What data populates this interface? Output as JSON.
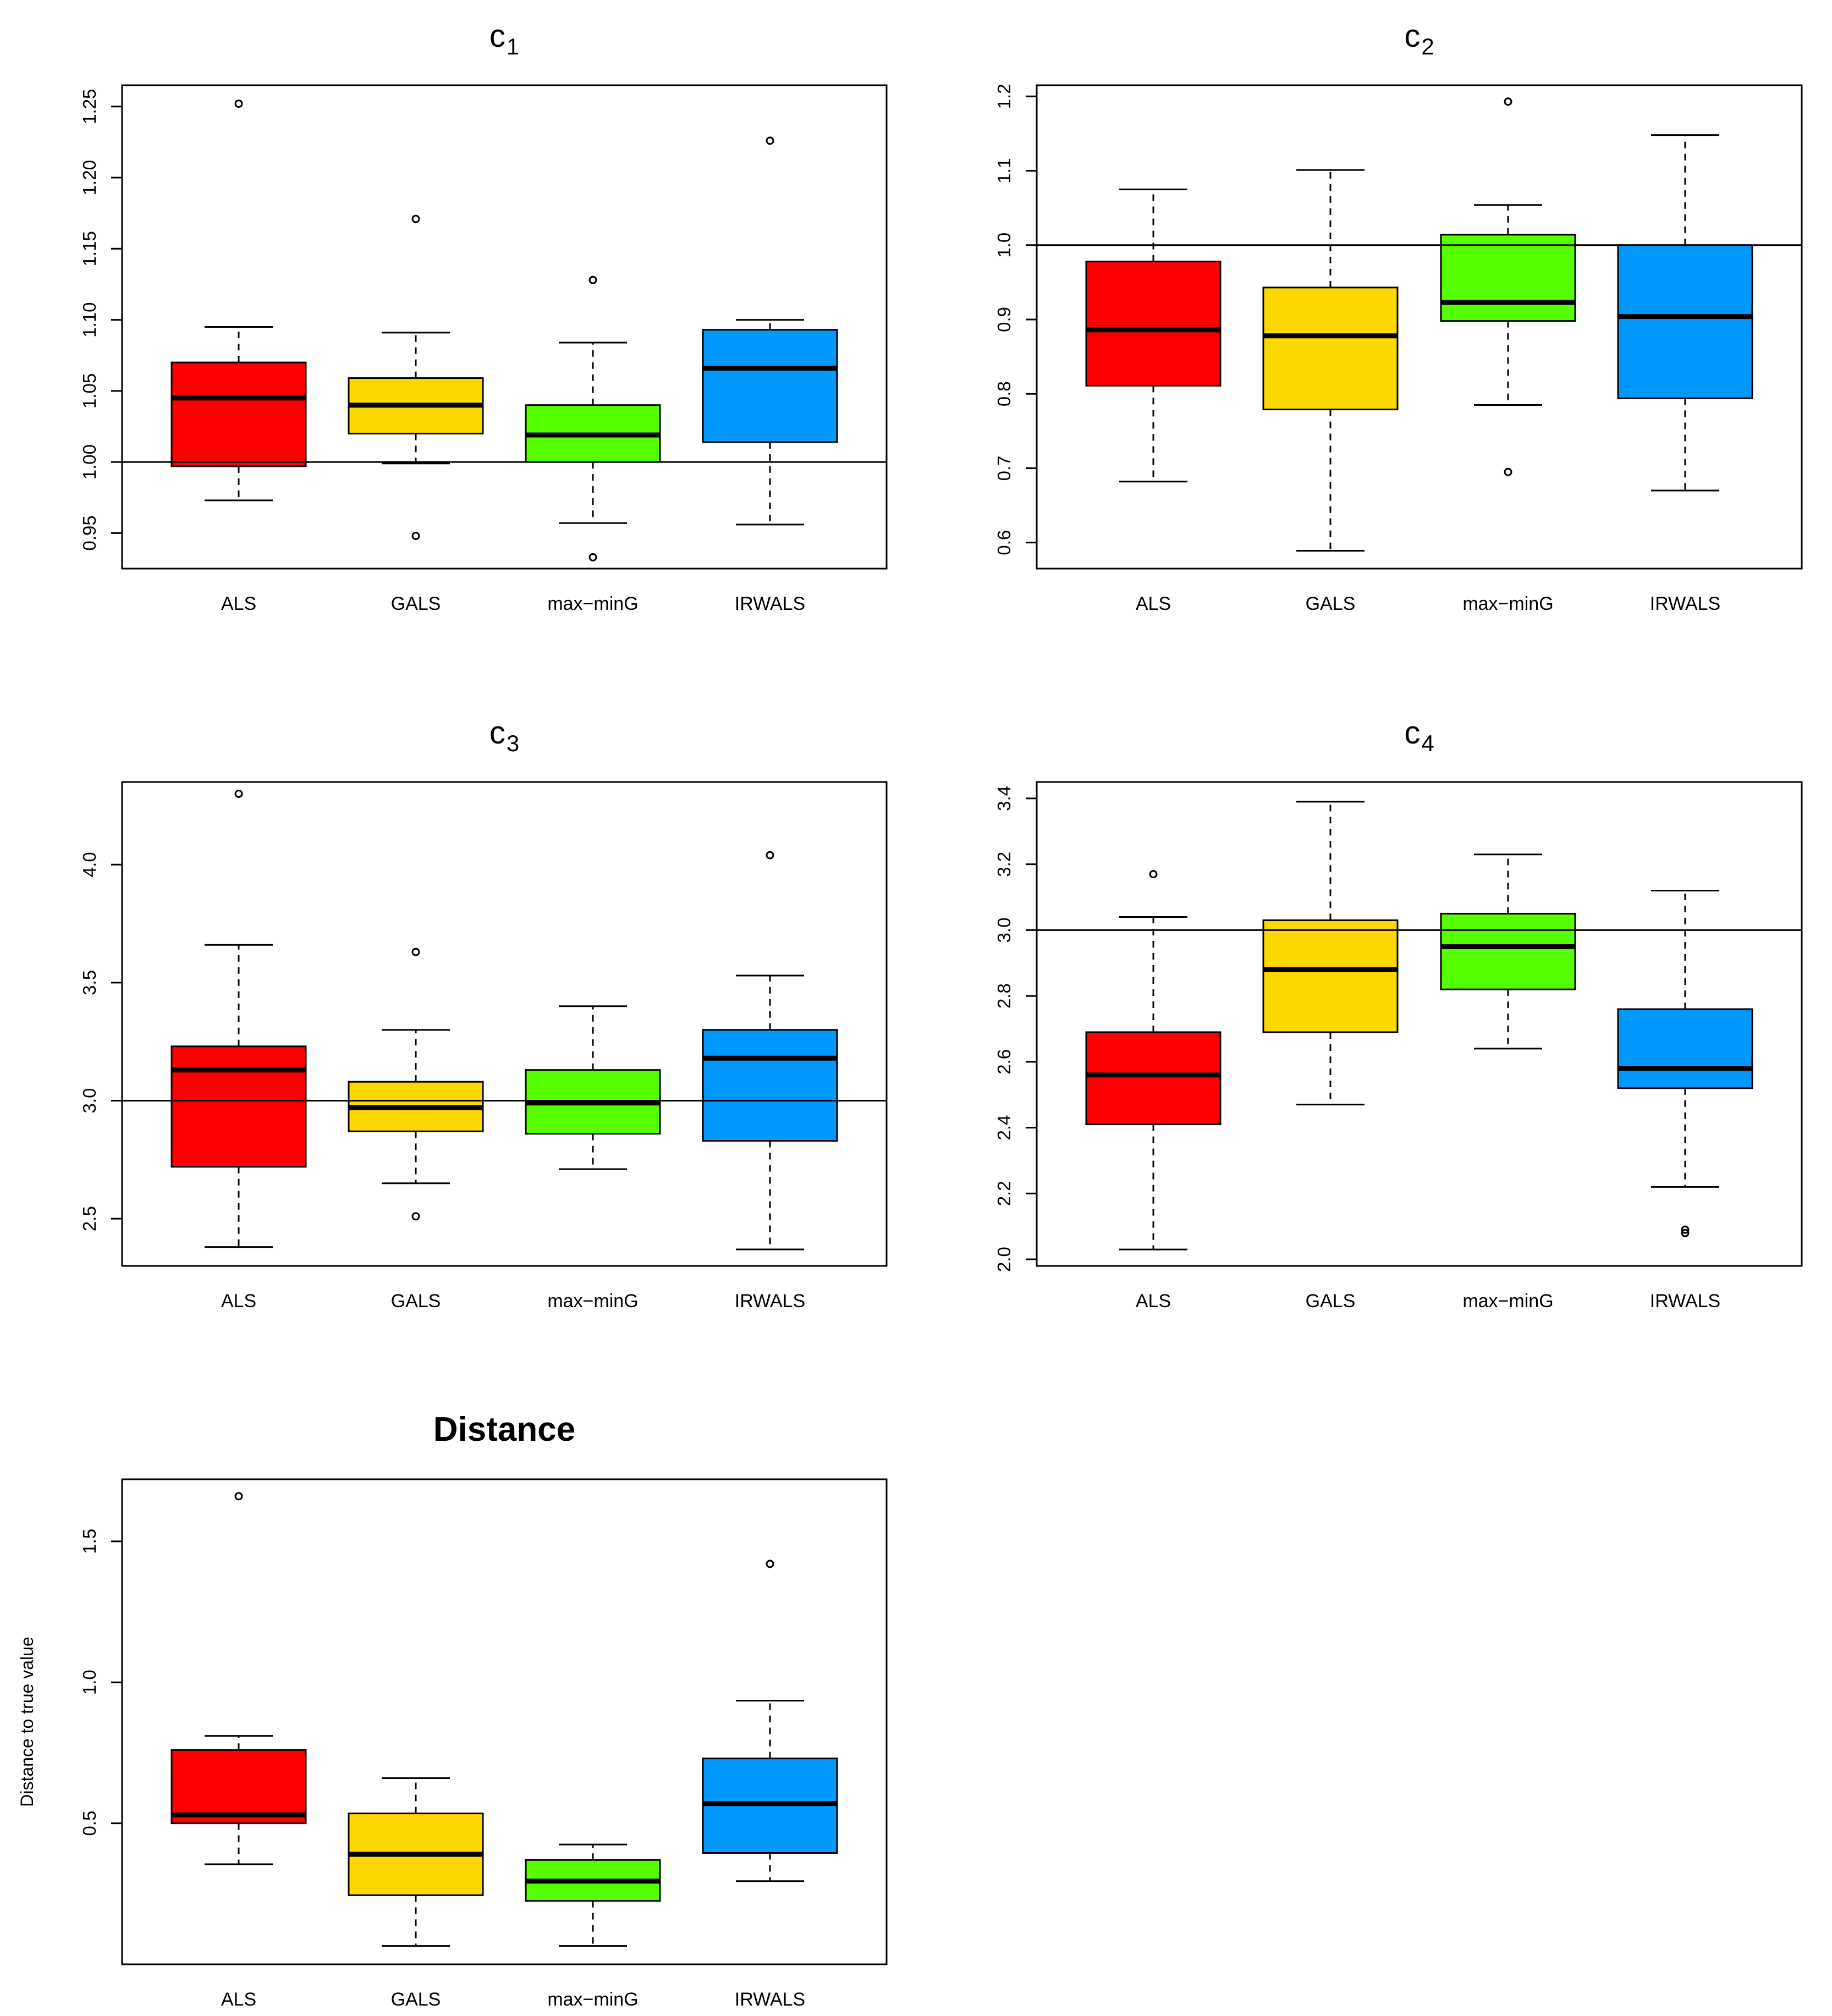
{
  "chart_data": [
    {
      "type": "boxplot",
      "title": "c",
      "title_subscript": "1",
      "title_bold": false,
      "xlabel": "",
      "ylabel": "",
      "ylim": [
        0.925,
        1.265
      ],
      "yticks": [
        0.95,
        1.0,
        1.05,
        1.1,
        1.15,
        1.2,
        1.25
      ],
      "ytick_labels": [
        "0.95",
        "1.00",
        "1.05",
        "1.10",
        "1.15",
        "1.20",
        "1.25"
      ],
      "reference_line": 1.0,
      "categories": [
        "ALS",
        "GALS",
        "max−minG",
        "IRWALS"
      ],
      "boxes": [
        {
          "whisker_low": 0.973,
          "q1": 0.997,
          "median": 1.045,
          "q3": 1.07,
          "whisker_high": 1.095,
          "outliers": [
            1.252
          ]
        },
        {
          "whisker_low": 0.999,
          "q1": 1.02,
          "median": 1.04,
          "q3": 1.059,
          "whisker_high": 1.091,
          "outliers": [
            1.171,
            0.948
          ]
        },
        {
          "whisker_low": 0.957,
          "q1": 1.0,
          "median": 1.019,
          "q3": 1.04,
          "whisker_high": 1.084,
          "outliers": [
            1.128,
            0.933
          ]
        },
        {
          "whisker_low": 0.956,
          "q1": 1.014,
          "median": 1.066,
          "q3": 1.093,
          "whisker_high": 1.1,
          "outliers": [
            1.226
          ]
        }
      ]
    },
    {
      "type": "boxplot",
      "title": "c",
      "title_subscript": "2",
      "title_bold": false,
      "xlabel": "",
      "ylabel": "",
      "ylim": [
        0.565,
        1.215
      ],
      "yticks": [
        0.6,
        0.7,
        0.8,
        0.9,
        1.0,
        1.1,
        1.2
      ],
      "ytick_labels": [
        "0.6",
        "0.7",
        "0.8",
        "0.9",
        "1.0",
        "1.1",
        "1.2"
      ],
      "reference_line": 1.0,
      "categories": [
        "ALS",
        "GALS",
        "max−minG",
        "IRWALS"
      ],
      "boxes": [
        {
          "whisker_low": 0.682,
          "q1": 0.811,
          "median": 0.886,
          "q3": 0.978,
          "whisker_high": 1.075,
          "outliers": []
        },
        {
          "whisker_low": 0.589,
          "q1": 0.779,
          "median": 0.878,
          "q3": 0.943,
          "whisker_high": 1.101,
          "outliers": []
        },
        {
          "whisker_low": 0.785,
          "q1": 0.898,
          "median": 0.923,
          "q3": 1.014,
          "whisker_high": 1.054,
          "outliers": [
            1.193,
            0.695
          ]
        },
        {
          "whisker_low": 0.67,
          "q1": 0.794,
          "median": 0.904,
          "q3": 1.0,
          "whisker_high": 1.148,
          "outliers": []
        }
      ]
    },
    {
      "type": "boxplot",
      "title": "c",
      "title_subscript": "3",
      "title_bold": false,
      "xlabel": "",
      "ylabel": "",
      "ylim": [
        2.3,
        4.35
      ],
      "yticks": [
        2.5,
        3.0,
        3.5,
        4.0
      ],
      "ytick_labels": [
        "2.5",
        "3.0",
        "3.5",
        "4.0"
      ],
      "reference_line": 3.0,
      "categories": [
        "ALS",
        "GALS",
        "max−minG",
        "IRWALS"
      ],
      "boxes": [
        {
          "whisker_low": 2.38,
          "q1": 2.72,
          "median": 3.13,
          "q3": 3.23,
          "whisker_high": 3.66,
          "outliers": [
            4.3
          ]
        },
        {
          "whisker_low": 2.65,
          "q1": 2.87,
          "median": 2.97,
          "q3": 3.08,
          "whisker_high": 3.3,
          "outliers": [
            3.63,
            2.51
          ]
        },
        {
          "whisker_low": 2.71,
          "q1": 2.86,
          "median": 2.99,
          "q3": 3.13,
          "whisker_high": 3.4,
          "outliers": []
        },
        {
          "whisker_low": 2.37,
          "q1": 2.83,
          "median": 3.18,
          "q3": 3.3,
          "whisker_high": 3.53,
          "outliers": [
            4.04
          ]
        }
      ]
    },
    {
      "type": "boxplot",
      "title": "c",
      "title_subscript": "4",
      "title_bold": false,
      "xlabel": "",
      "ylabel": "",
      "ylim": [
        1.98,
        3.45
      ],
      "yticks": [
        2.0,
        2.2,
        2.4,
        2.6,
        2.8,
        3.0,
        3.2,
        3.4
      ],
      "ytick_labels": [
        "2.0",
        "2.2",
        "2.4",
        "2.6",
        "2.8",
        "3.0",
        "3.2",
        "3.4"
      ],
      "reference_line": 3.0,
      "categories": [
        "ALS",
        "GALS",
        "max−minG",
        "IRWALS"
      ],
      "boxes": [
        {
          "whisker_low": 2.03,
          "q1": 2.41,
          "median": 2.56,
          "q3": 2.69,
          "whisker_high": 3.04,
          "outliers": [
            3.17
          ]
        },
        {
          "whisker_low": 2.47,
          "q1": 2.69,
          "median": 2.88,
          "q3": 3.03,
          "whisker_high": 3.39,
          "outliers": []
        },
        {
          "whisker_low": 2.64,
          "q1": 2.82,
          "median": 2.95,
          "q3": 3.05,
          "whisker_high": 3.23,
          "outliers": []
        },
        {
          "whisker_low": 2.22,
          "q1": 2.52,
          "median": 2.58,
          "q3": 2.76,
          "whisker_high": 3.12,
          "outliers": [
            2.09,
            2.08
          ]
        }
      ]
    },
    {
      "type": "boxplot",
      "title": "Distance",
      "title_subscript": "",
      "title_bold": true,
      "xlabel": "",
      "ylabel": "Distance to true value",
      "ylim": [
        0.0,
        1.72
      ],
      "yticks": [
        0.5,
        1.0,
        1.5
      ],
      "ytick_labels": [
        "0.5",
        "1.0",
        "1.5"
      ],
      "reference_line": null,
      "categories": [
        "ALS",
        "GALS",
        "max−minG",
        "IRWALS"
      ],
      "boxes": [
        {
          "whisker_low": 0.355,
          "q1": 0.5,
          "median": 0.53,
          "q3": 0.76,
          "whisker_high": 0.81,
          "outliers": [
            1.66
          ]
        },
        {
          "whisker_low": 0.065,
          "q1": 0.245,
          "median": 0.39,
          "q3": 0.535,
          "whisker_high": 0.66,
          "outliers": []
        },
        {
          "whisker_low": 0.065,
          "q1": 0.225,
          "median": 0.295,
          "q3": 0.37,
          "whisker_high": 0.425,
          "outliers": []
        },
        {
          "whisker_low": 0.295,
          "q1": 0.395,
          "median": 0.57,
          "q3": 0.73,
          "whisker_high": 0.935,
          "outliers": [
            1.42
          ]
        }
      ]
    }
  ],
  "colors": {
    "box_fills": [
      "#FF0000",
      "#FFD700",
      "#55FF00",
      "#0099FF"
    ],
    "ink": "#000000"
  }
}
